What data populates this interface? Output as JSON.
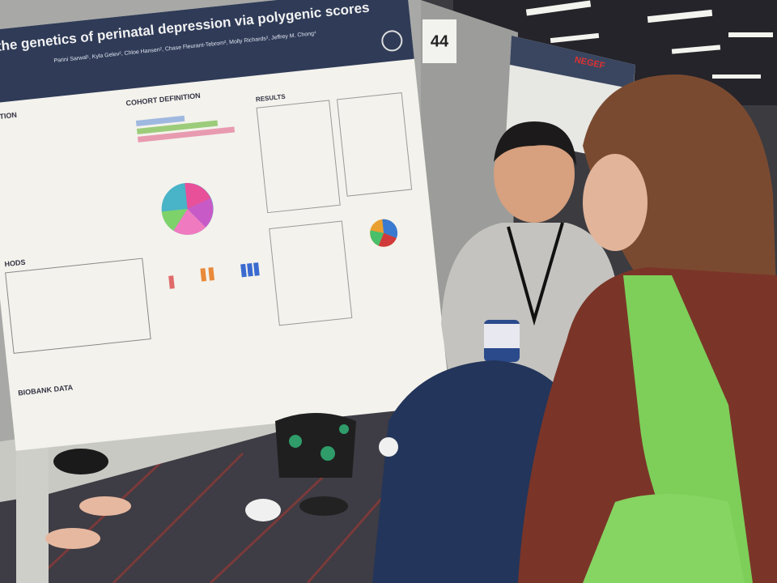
{
  "poster": {
    "title": "the genetics of perinatal depression via polygenic scores",
    "authors": "Parini Sarwal¹, Kyla Gelev², Chloe Hansen², Chase Fleurant-Tebrom², Molly Richards³, Jeffrey M. Chong⁴",
    "sections": [
      "UCTION",
      "COHORT DEFINITION",
      "RESULTS",
      "HODS",
      "BIOBANK DATA"
    ]
  },
  "board_number": "44",
  "background_poster": {
    "logo": "NEGEF"
  }
}
